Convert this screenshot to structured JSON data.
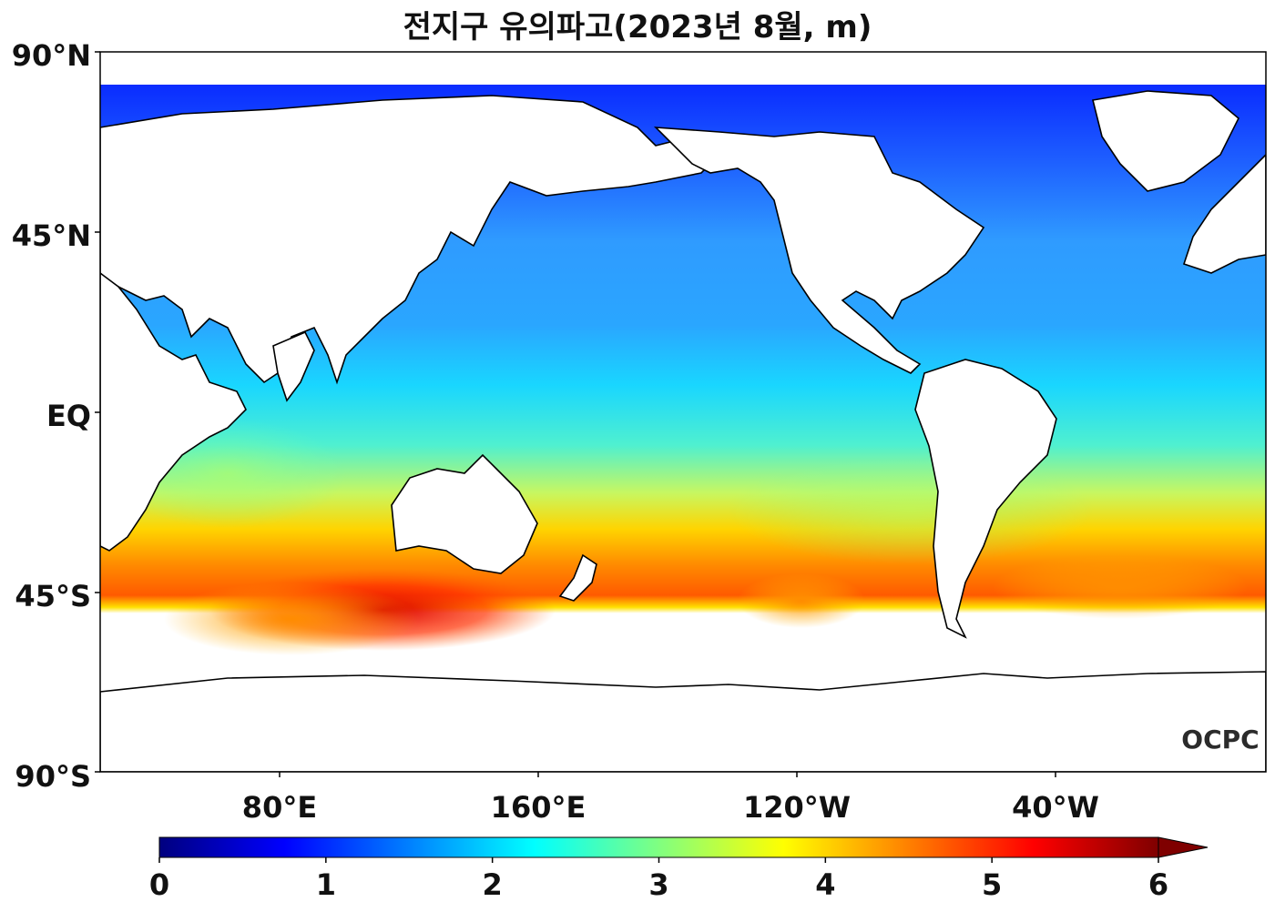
{
  "title": "전지구 유의파고(2023년 8월, m)",
  "watermark": "OCPC",
  "map": {
    "lat_ticks": [
      "90°N",
      "45°N",
      "EQ",
      "45°S",
      "90°S"
    ],
    "lon_ticks": [
      "80°E",
      "160°E",
      "120°W",
      "40°W"
    ]
  },
  "colorbar": {
    "ticks": [
      "0",
      "1",
      "2",
      "3",
      "4",
      "5",
      "6"
    ],
    "min": 0,
    "max": 6,
    "extend": "max",
    "colormap": "jet",
    "colors": [
      "#00007f",
      "#0000ff",
      "#0080ff",
      "#00ffff",
      "#80ff80",
      "#ffff00",
      "#ff8000",
      "#ff0000",
      "#7f0000"
    ]
  }
}
